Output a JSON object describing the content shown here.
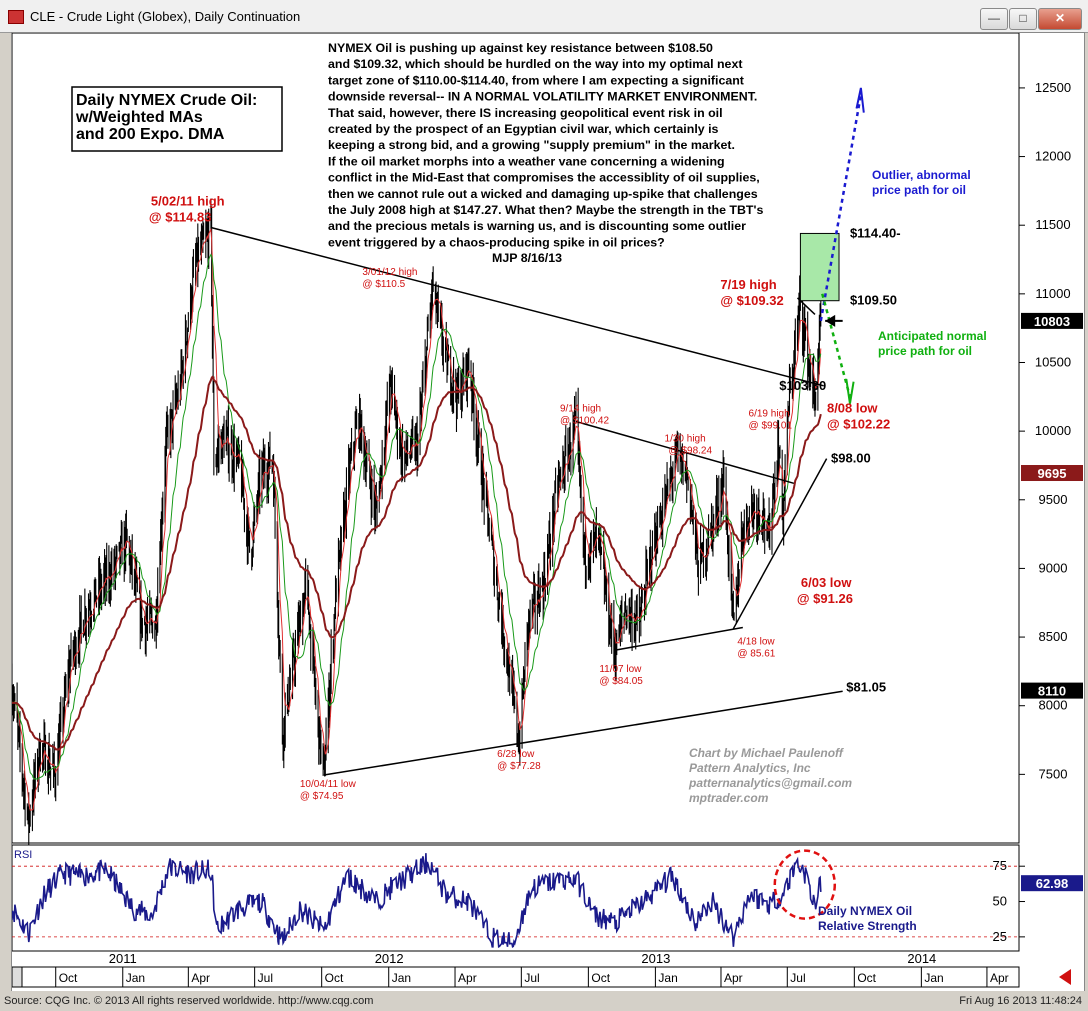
{
  "window": {
    "title": "CLE - Crude Light (Globex), Daily Continuation",
    "min_label": "—",
    "max_label": "□",
    "close_label": "✕"
  },
  "footer": {
    "source": "Source: CQG Inc. © 2013 All rights reserved worldwide. http://www.cqg.com",
    "timestamp": "Fri Aug 16 2013 11:48:24"
  },
  "chart_data": {
    "type": "line",
    "title": "Daily NYMEX Crude Oil: w/Weighted MAs and 200 Expo. DMA",
    "title_lines": [
      "Daily NYMEX Crude Oil:",
      "w/Weighted MAs",
      "and 200 Expo. DMA"
    ],
    "xlabel": "",
    "ylabel": "",
    "ylim": [
      7000,
      12900
    ],
    "y_ticks": [
      7500,
      8000,
      8500,
      9000,
      9500,
      10000,
      10500,
      11000,
      11500,
      12000,
      12500
    ],
    "y_tick_labels": [
      "7500",
      "8000",
      "8500",
      "9000",
      "9500",
      "10000",
      "10500",
      "11000",
      "11500",
      "12000",
      "12500"
    ],
    "x_range": [
      "2010-08-02",
      "2014-05-15"
    ],
    "x_month_ticks": [
      {
        "label": "Oct",
        "date": "2010-10-01"
      },
      {
        "label": "Jan",
        "date": "2011-01-01"
      },
      {
        "label": "Apr",
        "date": "2011-04-01"
      },
      {
        "label": "Jul",
        "date": "2011-07-01"
      },
      {
        "label": "Oct",
        "date": "2011-10-01"
      },
      {
        "label": "Jan",
        "date": "2012-01-01"
      },
      {
        "label": "Apr",
        "date": "2012-04-01"
      },
      {
        "label": "Jul",
        "date": "2012-07-01"
      },
      {
        "label": "Oct",
        "date": "2012-10-01"
      },
      {
        "label": "Jan",
        "date": "2013-01-01"
      },
      {
        "label": "Apr",
        "date": "2013-04-01"
      },
      {
        "label": "Jul",
        "date": "2013-07-01"
      },
      {
        "label": "Oct",
        "date": "2013-10-01"
      },
      {
        "label": "Jan",
        "date": "2014-01-01"
      },
      {
        "label": "Apr",
        "date": "2014-04-01"
      }
    ],
    "x_year_ticks": [
      {
        "label": "2011",
        "date": "2011-01-01"
      },
      {
        "label": "2012",
        "date": "2012-01-01"
      },
      {
        "label": "2013",
        "date": "2013-01-01"
      },
      {
        "label": "2014",
        "date": "2014-01-01"
      }
    ],
    "series": [
      {
        "name": "",
        "points": [
          [
            "2010-08-02",
            8150
          ],
          [
            "2010-08-24",
            7150
          ],
          [
            "2010-09-10",
            7700
          ],
          [
            "2010-09-30",
            7500
          ],
          [
            "2010-10-20",
            8300
          ],
          [
            "2010-11-12",
            8700
          ],
          [
            "2010-12-20",
            9000
          ],
          [
            "2011-01-06",
            9200
          ],
          [
            "2011-01-28",
            8600
          ],
          [
            "2011-02-15",
            8600
          ],
          [
            "2011-03-01",
            9900
          ],
          [
            "2011-03-20",
            10300
          ],
          [
            "2011-04-10",
            11200
          ],
          [
            "2011-05-02",
            11483
          ],
          [
            "2011-05-06",
            9800
          ],
          [
            "2011-05-20",
            9950
          ],
          [
            "2011-06-10",
            9750
          ],
          [
            "2011-06-25",
            9100
          ],
          [
            "2011-07-10",
            9700
          ],
          [
            "2011-07-26",
            9800
          ],
          [
            "2011-08-08",
            7800
          ],
          [
            "2011-08-20",
            8200
          ],
          [
            "2011-09-10",
            8900
          ],
          [
            "2011-09-25",
            7900
          ],
          [
            "2011-10-04",
            7495
          ],
          [
            "2011-10-20",
            8800
          ],
          [
            "2011-11-08",
            9700
          ],
          [
            "2011-11-20",
            10100
          ],
          [
            "2011-12-15",
            9400
          ],
          [
            "2012-01-03",
            10350
          ],
          [
            "2012-01-20",
            9800
          ],
          [
            "2012-02-10",
            9900
          ],
          [
            "2012-03-01",
            11050
          ],
          [
            "2012-03-20",
            10500
          ],
          [
            "2012-04-05",
            10250
          ],
          [
            "2012-04-20",
            10500
          ],
          [
            "2012-05-05",
            9800
          ],
          [
            "2012-05-25",
            9000
          ],
          [
            "2012-06-10",
            8400
          ],
          [
            "2012-06-28",
            7728
          ],
          [
            "2012-07-10",
            8600
          ],
          [
            "2012-08-01",
            8900
          ],
          [
            "2012-08-20",
            9600
          ],
          [
            "2012-09-14",
            10042
          ],
          [
            "2012-09-25",
            9100
          ],
          [
            "2012-10-15",
            9200
          ],
          [
            "2012-10-30",
            8600
          ],
          [
            "2012-11-07",
            8405
          ],
          [
            "2012-11-20",
            8700
          ],
          [
            "2012-12-10",
            8600
          ],
          [
            "2012-12-26",
            9100
          ],
          [
            "2013-01-15",
            9500
          ],
          [
            "2013-01-30",
            9824
          ],
          [
            "2013-02-15",
            9650
          ],
          [
            "2013-03-01",
            9000
          ],
          [
            "2013-03-20",
            9300
          ],
          [
            "2013-04-05",
            9650
          ],
          [
            "2013-04-18",
            8561
          ],
          [
            "2013-05-01",
            9300
          ],
          [
            "2013-05-15",
            9450
          ],
          [
            "2013-05-30",
            9400
          ],
          [
            "2013-06-03",
            9126
          ],
          [
            "2013-06-19",
            9901
          ],
          [
            "2013-06-25",
            9400
          ],
          [
            "2013-07-03",
            10200
          ],
          [
            "2013-07-19",
            10932
          ],
          [
            "2013-07-30",
            10500
          ],
          [
            "2013-08-08",
            10222
          ],
          [
            "2013-08-16",
            10803
          ]
        ]
      }
    ],
    "current_price_label": "10803",
    "ma200_label": "9695",
    "lower_label": "8110",
    "annotations": [
      {
        "text": "5/02/11 high",
        "price": 11483,
        "date": "2011-05-02"
      },
      {
        "text": "@ $114.83",
        "price": 11483,
        "date": "2011-05-02"
      },
      {
        "text": "3/01/12 high",
        "price": 11050,
        "date": "2012-03-01"
      },
      {
        "text": "@ $110.5",
        "price": 11050,
        "date": "2012-03-01"
      },
      {
        "text": "9/14 high",
        "price": 10042,
        "date": "2012-09-14"
      },
      {
        "text": "@ $100.42",
        "price": 10042,
        "date": "2012-09-14"
      },
      {
        "text": "1/30 high",
        "price": 9824,
        "date": "2013-01-30"
      },
      {
        "text": "@ $98.24",
        "price": 9824,
        "date": "2013-01-30"
      },
      {
        "text": "6/19 high",
        "price": 9901,
        "date": "2013-06-19"
      },
      {
        "text": "@ $99.01",
        "price": 9901,
        "date": "2013-06-19"
      },
      {
        "text": "7/19 high",
        "price": 10932,
        "date": "2013-07-19"
      },
      {
        "text": "@ $109.32",
        "price": 10932,
        "date": "2013-07-19"
      },
      {
        "text": "8/08 low",
        "price": 10222,
        "date": "2013-08-08"
      },
      {
        "text": "@ $102.22",
        "price": 10222,
        "date": "2013-08-08"
      },
      {
        "text": "6/03 low",
        "price": 9126,
        "date": "2013-06-03"
      },
      {
        "text": "@ $91.26",
        "price": 9126,
        "date": "2013-06-03"
      },
      {
        "text": "4/18 low",
        "price": 8561,
        "date": "2013-04-18"
      },
      {
        "text": "@ 85.61",
        "price": 8561,
        "date": "2013-04-18"
      },
      {
        "text": "11/07 low",
        "price": 8405,
        "date": "2012-11-07"
      },
      {
        "text": "@ $84.05",
        "price": 8405,
        "date": "2012-11-07"
      },
      {
        "text": "6/28 low",
        "price": 7728,
        "date": "2012-06-28"
      },
      {
        "text": "@ $77.28",
        "price": 7728,
        "date": "2012-06-28"
      },
      {
        "text": "10/04/11 low",
        "price": 7495,
        "date": "2011-10-04"
      },
      {
        "text": "@ $74.95",
        "price": 7495,
        "date": "2011-10-04"
      }
    ],
    "levels": [
      {
        "text": "$114.40-",
        "price": 11440
      },
      {
        "text": "$109.50",
        "price": 10950
      },
      {
        "text": "$103.30",
        "price": 10330
      },
      {
        "text": "$98.00",
        "price": 9800
      },
      {
        "text": "$81.05",
        "price": 8105
      }
    ],
    "outlier_label": [
      "Outlier, abnormal",
      "price path for oil"
    ],
    "normal_label": [
      "Anticipated normal",
      "price path for oil"
    ],
    "commentary": [
      "NYMEX Oil is pushing up against key resistance between $108.50",
      "and $109.32, which should be hurdled on the way into my optimal next",
      "target zone of $110.00-$114.40, from where I am expecting a significant",
      "downside reversal-- IN A NORMAL VOLATILITY MARKET ENVIRONMENT.",
      "That said, however, there IS increasing geopolitical event risk in oil",
      "created by the prospect of an Egyptian civil war, which certainly is",
      "keeping a strong bid, and a growing \"supply premium\" in the market.",
      "If the oil market morphs into a weather vane concerning a widening",
      "conflict in the Mid-East that compromises the accessiblity of oil supplies,",
      "then we cannot rule out a wicked and damaging up-spike that challenges",
      "the July 2008 high at $147.27. What then?  Maybe the strength in the TBT's",
      "and the precious metals is warning us, and is discounting some outlier",
      "event triggered by a chaos-producing spike in oil prices?"
    ],
    "signature": "MJP 8/16/13",
    "credit": [
      "Chart by Michael Paulenoff",
      "Pattern Analytics, Inc",
      "patternanalytics@gmail.com",
      "mptrader.com"
    ],
    "rsi": {
      "label": "RSI",
      "ylim": [
        15,
        90
      ],
      "ticks": [
        25,
        50,
        75
      ],
      "tick_labels": [
        "25",
        "50",
        "75"
      ],
      "current_label": "62.98",
      "caption": [
        "Daily NYMEX Oil",
        "Relative Strength"
      ],
      "points": [
        [
          "2010-08-02",
          45
        ],
        [
          "2010-08-25",
          28
        ],
        [
          "2010-09-15",
          55
        ],
        [
          "2010-10-10",
          70
        ],
        [
          "2010-11-05",
          68
        ],
        [
          "2010-12-10",
          72
        ],
        [
          "2011-01-15",
          45
        ],
        [
          "2011-02-10",
          40
        ],
        [
          "2011-03-05",
          74
        ],
        [
          "2011-04-05",
          70
        ],
        [
          "2011-05-02",
          72
        ],
        [
          "2011-05-10",
          30
        ],
        [
          "2011-06-10",
          45
        ],
        [
          "2011-07-10",
          50
        ],
        [
          "2011-08-08",
          22
        ],
        [
          "2011-09-01",
          45
        ],
        [
          "2011-10-04",
          30
        ],
        [
          "2011-11-05",
          68
        ],
        [
          "2011-12-15",
          50
        ],
        [
          "2012-01-05",
          60
        ],
        [
          "2012-02-25",
          78
        ],
        [
          "2012-03-20",
          55
        ],
        [
          "2012-04-20",
          50
        ],
        [
          "2012-05-20",
          25
        ],
        [
          "2012-06-20",
          20
        ],
        [
          "2012-07-15",
          60
        ],
        [
          "2012-08-20",
          65
        ],
        [
          "2012-09-14",
          66
        ],
        [
          "2012-10-10",
          40
        ],
        [
          "2012-11-07",
          35
        ],
        [
          "2012-12-15",
          50
        ],
        [
          "2013-01-25",
          68
        ],
        [
          "2013-02-25",
          35
        ],
        [
          "2013-03-20",
          50
        ],
        [
          "2013-04-18",
          25
        ],
        [
          "2013-05-10",
          55
        ],
        [
          "2013-06-05",
          48
        ],
        [
          "2013-06-25",
          55
        ],
        [
          "2013-07-15",
          78
        ],
        [
          "2013-07-25",
          70
        ],
        [
          "2013-08-08",
          48
        ],
        [
          "2013-08-16",
          63
        ]
      ]
    },
    "colors": {
      "price": "#000000",
      "wma_fast": "#e03030",
      "wma_slow": "#1a9a1a",
      "ema200": "#8b1a1a",
      "rsi": "#1a1a8b",
      "annotation": "#d01010",
      "outlier": "#1a1ad0",
      "normal": "#10b010",
      "target_box": "#a8e8a8",
      "current_price_bg": "#000000",
      "ma200_bg": "#8b1a1a"
    }
  }
}
